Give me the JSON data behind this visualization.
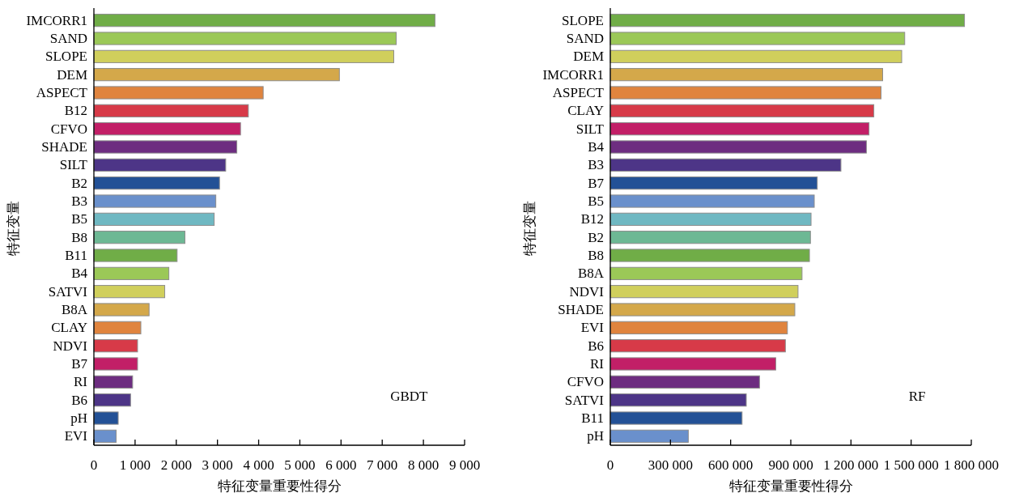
{
  "chart_data": [
    {
      "type": "bar",
      "orientation": "horizontal",
      "xlabel": "特征变量重要性得分",
      "ylabel": "特征变量",
      "annotations": [
        "GBDT"
      ],
      "categories": [
        "IMCORR1",
        "SAND",
        "SLOPE",
        "DEM",
        "ASPECT",
        "B12",
        "CFVO",
        "SHADE",
        "SILT",
        "B2",
        "B3",
        "B5",
        "B8",
        "B11",
        "B4",
        "SATVI",
        "B8A",
        "CLAY",
        "NDVI",
        "B7",
        "RI",
        "B6",
        "pH",
        "EVI"
      ],
      "values": [
        8280,
        7340,
        7280,
        5960,
        4110,
        3750,
        3560,
        3470,
        3200,
        3050,
        2960,
        2920,
        2210,
        2020,
        1820,
        1720,
        1340,
        1140,
        1060,
        1060,
        940,
        890,
        590,
        540
      ],
      "colors": [
        "#70ad47",
        "#9bc857",
        "#d0cf5c",
        "#d4a84a",
        "#e0843e",
        "#d73a48",
        "#c21f67",
        "#6d2d80",
        "#4d3587",
        "#235196",
        "#6a90cc",
        "#6fb8c2",
        "#6db894",
        "#70ad47",
        "#9bc857",
        "#d0cf5c",
        "#d4a84a",
        "#e0843e",
        "#d73a48",
        "#c21f67",
        "#6d2d80",
        "#4d3587",
        "#235196",
        "#6a90cc"
      ],
      "xlim": [
        0,
        9000
      ],
      "xticks": [
        0,
        {
          "value": 1000,
          "label": "1 000"
        },
        {
          "value": 2000,
          "label": "2 000"
        },
        {
          "value": 3000,
          "label": "3 000"
        },
        {
          "value": 4000,
          "label": "4 000"
        },
        {
          "value": 5000,
          "label": "5 000"
        },
        {
          "value": 6000,
          "label": "6 000"
        },
        {
          "value": 7000,
          "label": "7 000"
        },
        {
          "value": 8000,
          "label": "8 000"
        },
        {
          "value": 9000,
          "label": "9 000"
        }
      ]
    },
    {
      "type": "bar",
      "orientation": "horizontal",
      "xlabel": "特征变量重要性得分",
      "ylabel": "特征变量",
      "annotations": [
        "RF"
      ],
      "categories": [
        "SLOPE",
        "SAND",
        "DEM",
        "IMCORR1",
        "ASPECT",
        "CLAY",
        "SILT",
        "B4",
        "B3",
        "B7",
        "B5",
        "B12",
        "B2",
        "B8",
        "B8A",
        "NDVI",
        "SHADE",
        "EVI",
        "B6",
        "RI",
        "CFVO",
        "SATVI",
        "B11",
        "pH"
      ],
      "values": [
        1766000,
        1468000,
        1453000,
        1358000,
        1350000,
        1314000,
        1290000,
        1277000,
        1150000,
        1032000,
        1017000,
        1001000,
        998000,
        993000,
        956000,
        936000,
        920000,
        883000,
        873000,
        825000,
        744000,
        678000,
        657000,
        389000
      ],
      "colors": [
        "#70ad47",
        "#9bc857",
        "#d0cf5c",
        "#d4a84a",
        "#e0843e",
        "#d73a48",
        "#c21f67",
        "#6d2d80",
        "#4d3587",
        "#235196",
        "#6a90cc",
        "#6fb8c2",
        "#6db894",
        "#70ad47",
        "#9bc857",
        "#d0cf5c",
        "#d4a84a",
        "#e0843e",
        "#d73a48",
        "#c21f67",
        "#6d2d80",
        "#4d3587",
        "#235196",
        "#6a90cc"
      ],
      "xlim": [
        0,
        1800000
      ],
      "xticks": [
        0,
        {
          "value": 300000,
          "label": "300 000"
        },
        {
          "value": 600000,
          "label": "600 000"
        },
        {
          "value": 900000,
          "label": "900 000"
        },
        {
          "value": 1200000,
          "label": "1 200 000"
        },
        {
          "value": 1500000,
          "label": "1 500 000"
        },
        {
          "value": 1800000,
          "label": "1 800 000"
        }
      ]
    }
  ]
}
